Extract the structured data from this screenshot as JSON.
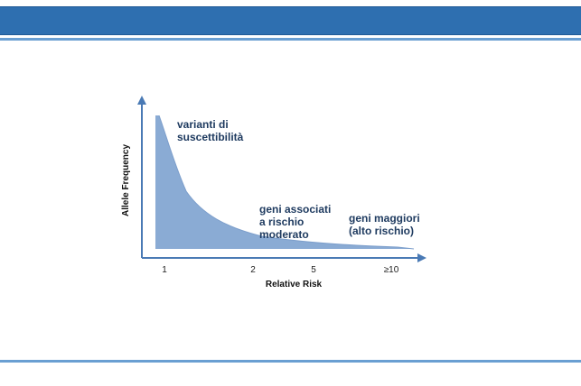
{
  "slide": {
    "header_color": "#2e6fb0",
    "rule_color": "#6a9fd2"
  },
  "diagram": {
    "fill_color": "#8aabd4",
    "axis_color": "#4a7ab5",
    "x_axis_label": "Relative Risk",
    "y_axis_label": "Allele Frequency",
    "x_ticks": [
      "1",
      "2",
      "5",
      "≥10"
    ],
    "annotations": {
      "low_risk": [
        "varianti di",
        "suscettibilità"
      ],
      "moderate_risk": [
        "geni associati",
        "a rischio",
        "moderato"
      ],
      "high_risk": [
        "geni maggiori",
        "(alto rischio)"
      ]
    }
  }
}
